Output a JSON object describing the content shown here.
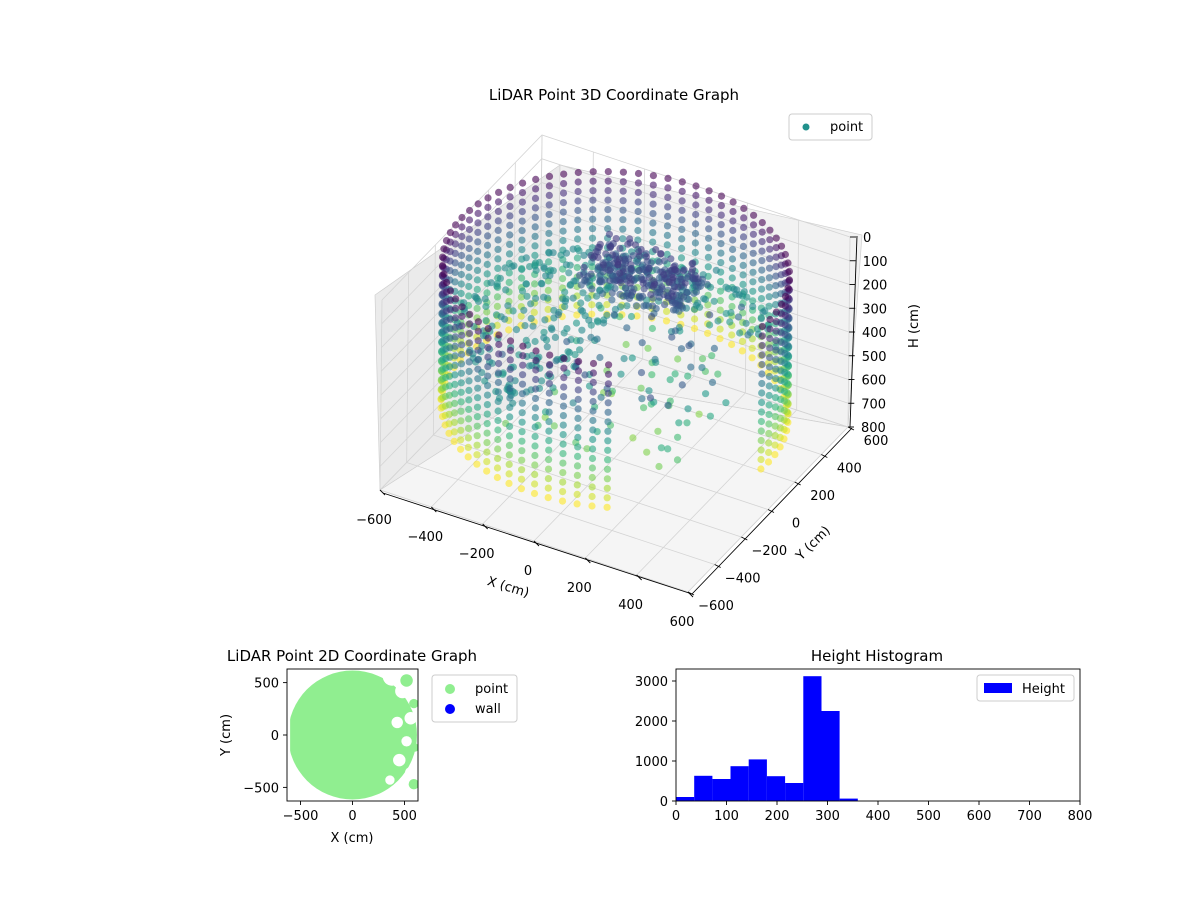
{
  "chart_data": [
    {
      "type": "scatter",
      "projection": "3d",
      "title": "LiDAR Point 3D Coordinate Graph",
      "xlabel": "X (cm)",
      "ylabel": "Y (cm)",
      "zlabel": "H (cm)",
      "xlim": [
        -600,
        600
      ],
      "ylim": [
        -600,
        600
      ],
      "zlim": [
        0,
        800
      ],
      "z_inverted": true,
      "x_ticks": [
        "−600",
        "−400",
        "−200",
        "0",
        "200",
        "400",
        "600"
      ],
      "y_ticks": [
        "−600",
        "−400",
        "−200",
        "0",
        "200",
        "400",
        "600"
      ],
      "z_ticks": [
        "0",
        "100",
        "200",
        "300",
        "400",
        "500",
        "600",
        "700",
        "800"
      ],
      "grid": true,
      "colormap": "viridis",
      "legend": {
        "placement": "upper-right",
        "entries": [
          {
            "label": "point",
            "color": "#21918c"
          }
        ]
      },
      "point_cloud": {
        "shape": "ring wall with floor points and a central cluster",
        "wall_radius": 600,
        "gap_angle_deg": [
          300,
          350
        ],
        "wall_h_range": [
          0,
          600
        ],
        "floor_h_range": [
          270,
          320
        ],
        "cluster_center": [
          0,
          200
        ],
        "cluster_h_range": [
          100,
          200
        ]
      }
    },
    {
      "type": "scatter",
      "title": "LiDAR Point 2D Coordinate Graph",
      "xlabel": "X (cm)",
      "ylabel": "Y (cm)",
      "xlim": [
        -630,
        630
      ],
      "ylim": [
        -630,
        630
      ],
      "x_ticks": [
        "−500",
        "0",
        "500"
      ],
      "y_ticks": [
        "−500",
        "0",
        "500"
      ],
      "legend": {
        "placement": "outside-right",
        "entries": [
          {
            "label": "point",
            "color": "#90ee90"
          },
          {
            "label": "wall",
            "color": "#0000ff"
          }
        ]
      },
      "region": {
        "shape": "disc",
        "center": [
          0,
          0
        ],
        "radius": 620,
        "clip_x_min": -600
      }
    },
    {
      "type": "bar",
      "subtype": "histogram",
      "title": "Height Histogram",
      "xlim": [
        0,
        800
      ],
      "ylim": [
        0,
        3300
      ],
      "x_ticks": [
        "0",
        "100",
        "200",
        "300",
        "400",
        "500",
        "600",
        "700",
        "800"
      ],
      "y_ticks": [
        "0",
        "1000",
        "2000",
        "3000"
      ],
      "bin_edges": [
        0,
        36,
        72,
        108,
        144,
        180,
        216,
        252,
        288,
        324,
        360
      ],
      "counts": [
        100,
        630,
        550,
        870,
        1040,
        620,
        450,
        3120,
        2250,
        60
      ],
      "color": "#0000ff",
      "legend": {
        "placement": "upper-right",
        "entries": [
          {
            "label": "Height",
            "color": "#0000ff"
          }
        ]
      }
    }
  ]
}
